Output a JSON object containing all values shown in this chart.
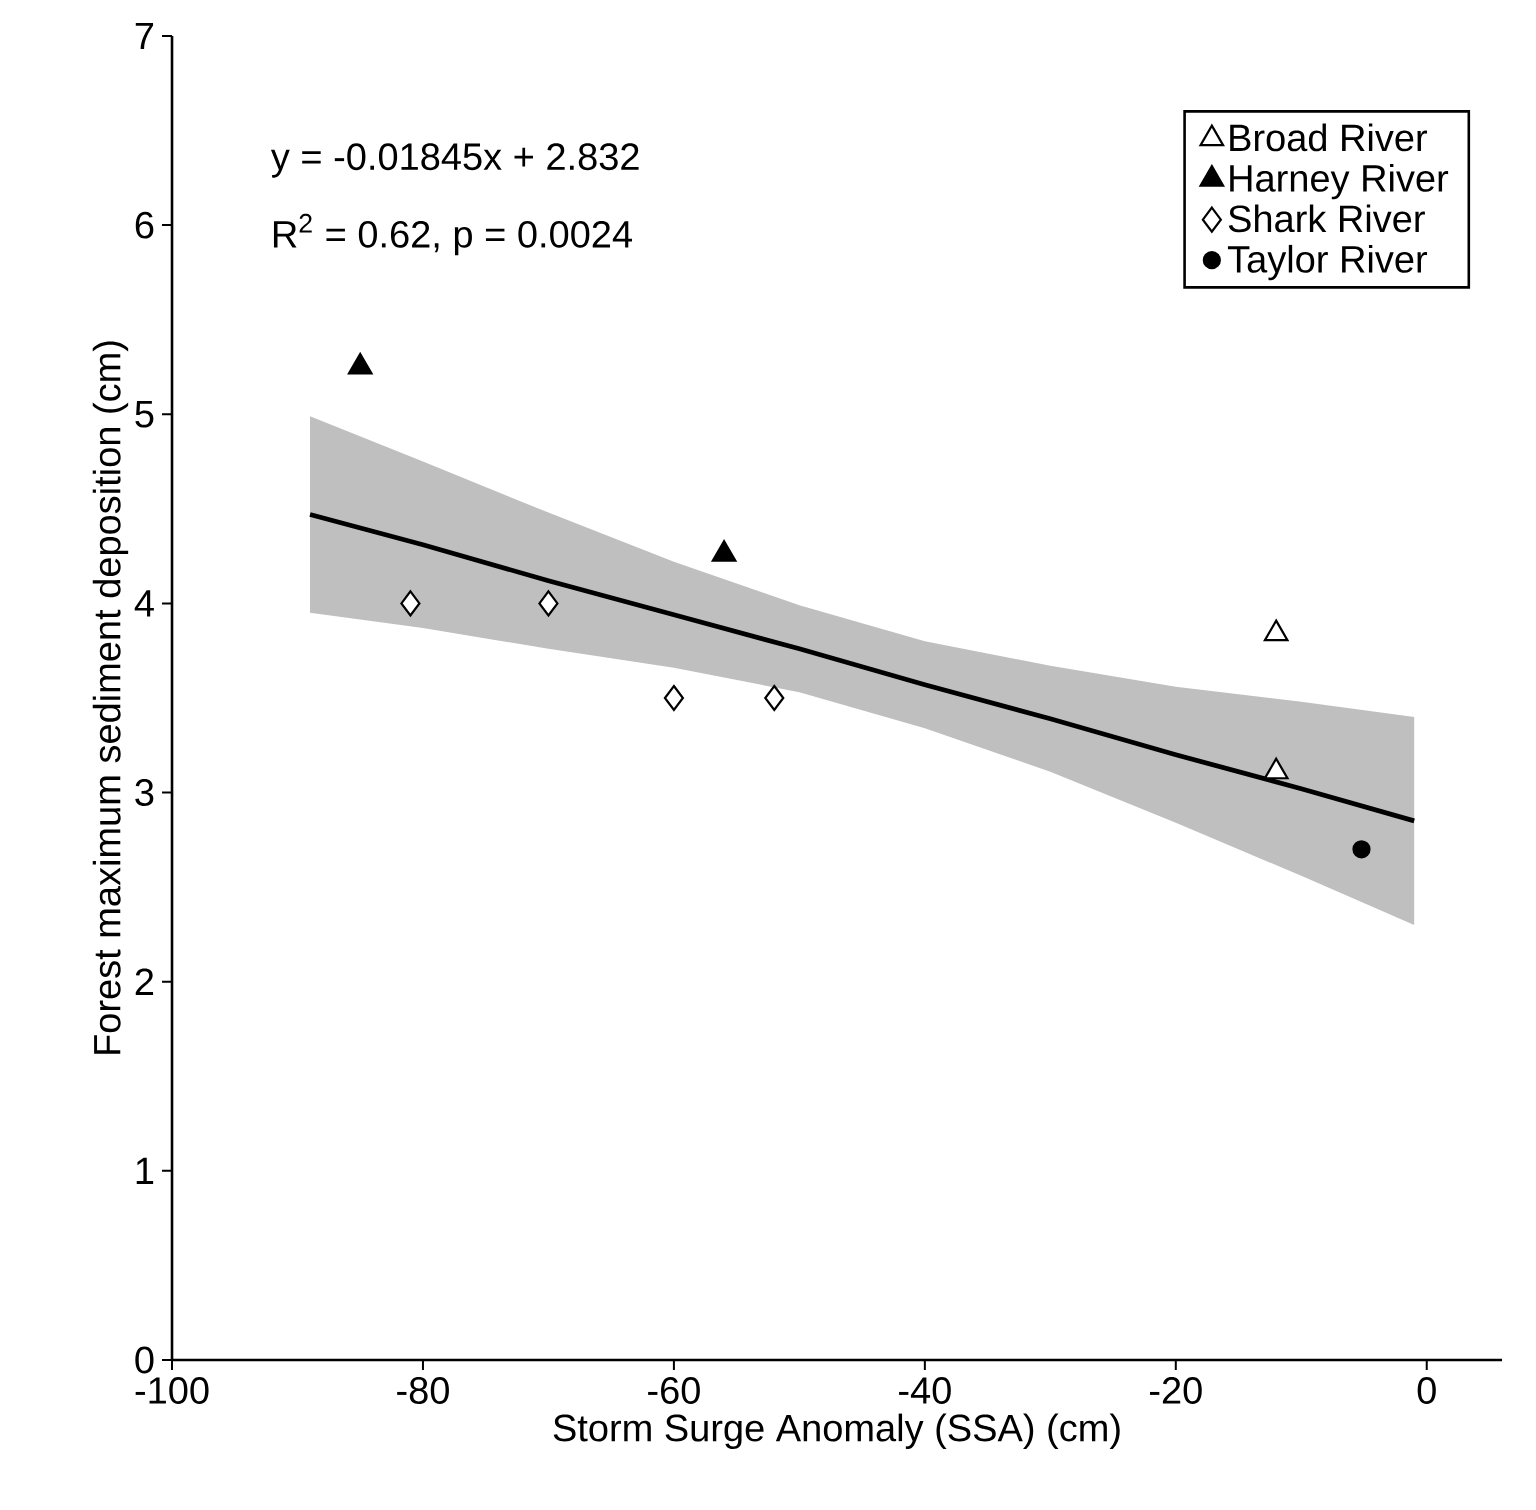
{
  "chart_data": {
    "type": "scatter",
    "xlabel": "Storm Surge Anomaly (SSA) (cm)",
    "ylabel": "Forest maximum sediment deposition (cm)",
    "xlim": [
      -100,
      6
    ],
    "ylim": [
      0,
      7
    ],
    "xticks": [
      -100,
      -80,
      -60,
      -40,
      -20,
      0
    ],
    "yticks": [
      0,
      1,
      2,
      3,
      4,
      5,
      6,
      7
    ],
    "legend": "top right",
    "grid": false,
    "annotations": [
      "y = -0.01845x + 2.832",
      "R$^{2}$ = 0.62, p = 0.0024"
    ],
    "series": [
      {
        "name": "Broad River",
        "color": "#ffffff",
        "marker": "triangle",
        "x": [
          -12,
          -12
        ],
        "values": [
          3.84,
          3.11
        ]
      },
      {
        "name": "Harney River",
        "color": "#000000",
        "marker": "triangle",
        "x": [
          -85,
          -56
        ],
        "values": [
          5.25,
          4.26
        ]
      },
      {
        "name": "Shark River",
        "color": "#ffffff",
        "marker": "diamond",
        "x": [
          -81,
          -70,
          -60,
          -52
        ],
        "values": [
          4.0,
          4.0,
          3.5,
          3.5
        ]
      },
      {
        "name": "Taylor River",
        "color": "#000000",
        "marker": "circle",
        "x": [
          -5.2
        ],
        "values": [
          2.7
        ]
      },
      {
        "type": "line",
        "color": "#000000",
        "marker": "none",
        "x": [
          -89,
          -80,
          -70,
          -60,
          -50,
          -40,
          -30,
          -20,
          -10,
          -1
        ],
        "values": [
          4.47,
          4.31,
          4.12,
          3.94,
          3.76,
          3.57,
          3.39,
          3.2,
          3.02,
          2.85
        ],
        "lower": [
          3.95,
          3.87,
          3.76,
          3.66,
          3.53,
          3.34,
          3.11,
          2.84,
          2.56,
          2.3
        ],
        "upper": [
          4.99,
          4.75,
          4.48,
          4.22,
          3.99,
          3.8,
          3.67,
          3.56,
          3.48,
          3.4
        ]
      }
    ]
  }
}
